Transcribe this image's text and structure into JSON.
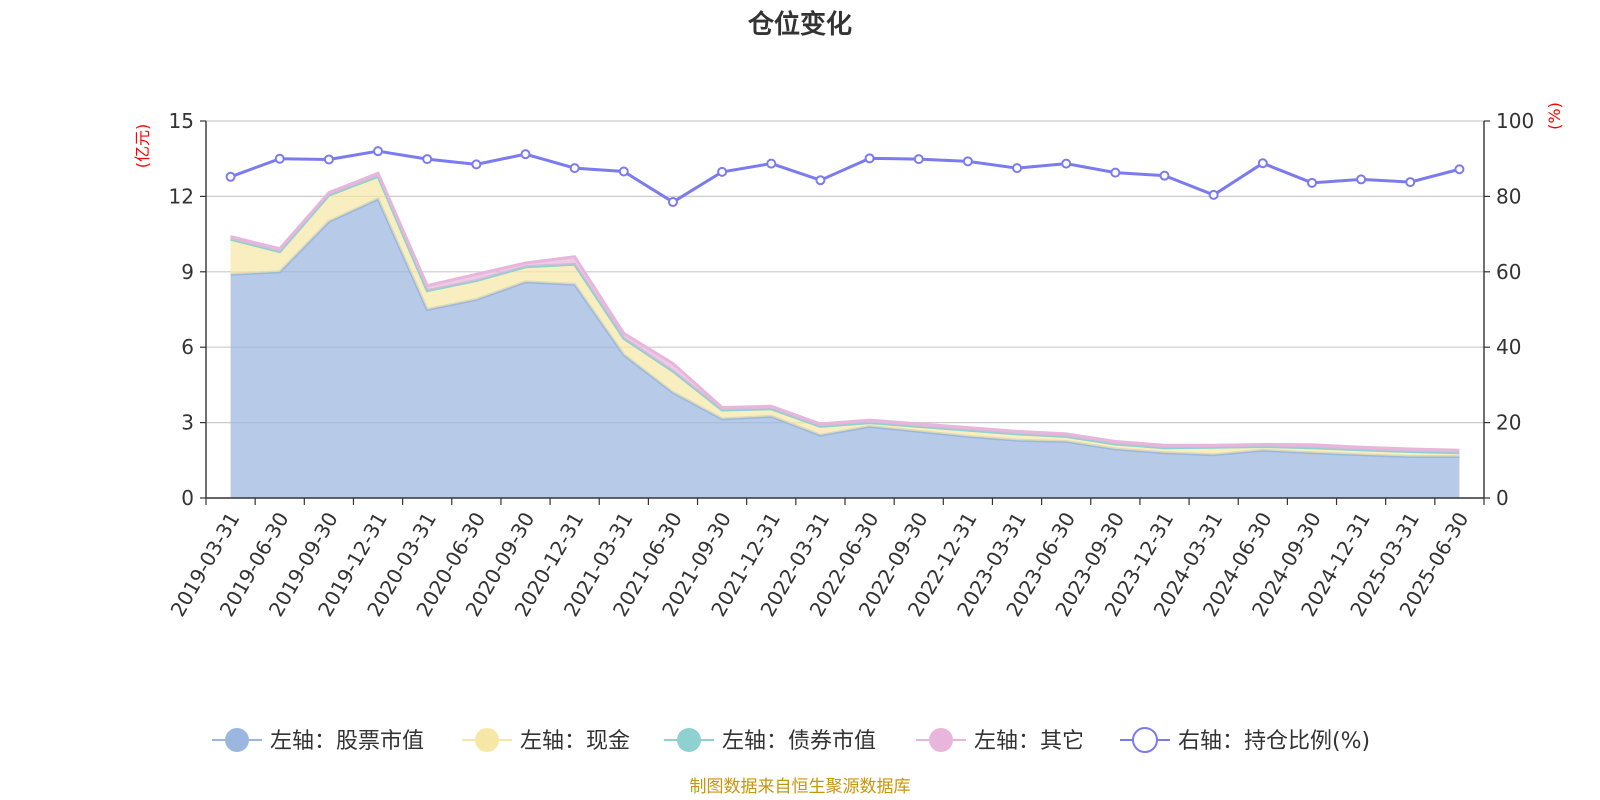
{
  "chart_data": {
    "type": "area",
    "title": "仓位变化",
    "left_axis_unit": "(亿元)",
    "right_axis_unit": "(%)",
    "categories": [
      "2019-03-31",
      "2019-06-30",
      "2019-09-30",
      "2019-12-31",
      "2020-03-31",
      "2020-06-30",
      "2020-09-30",
      "2020-12-31",
      "2021-03-31",
      "2021-06-30",
      "2021-09-30",
      "2021-12-31",
      "2022-03-31",
      "2022-06-30",
      "2022-09-30",
      "2022-12-31",
      "2023-03-31",
      "2023-06-30",
      "2023-09-30",
      "2023-12-31",
      "2024-03-31",
      "2024-06-30",
      "2024-09-30",
      "2024-12-31",
      "2025-03-31",
      "2025-06-30"
    ],
    "left_ylim": [
      0,
      15
    ],
    "left_ticks": [
      0,
      3,
      6,
      9,
      12,
      15
    ],
    "right_ylim": [
      0,
      100
    ],
    "right_ticks": [
      0,
      20,
      40,
      60,
      80,
      100
    ],
    "grid": true,
    "legend_position": "bottom",
    "series": [
      {
        "name": "左轴：股票市值",
        "axis": "left",
        "kind": "stacked-area",
        "color": "#9bb7e0",
        "values": [
          8.9,
          9.0,
          11.0,
          11.9,
          7.5,
          7.9,
          8.6,
          8.5,
          5.7,
          4.2,
          3.15,
          3.25,
          2.5,
          2.85,
          2.65,
          2.45,
          2.3,
          2.25,
          1.95,
          1.8,
          1.72,
          1.9,
          1.8,
          1.72,
          1.65,
          1.65
        ]
      },
      {
        "name": "左轴：现金",
        "axis": "left",
        "kind": "stacked-area",
        "color": "#f7e7a6",
        "values": [
          1.4,
          0.8,
          1.05,
          0.9,
          0.75,
          0.75,
          0.6,
          0.8,
          0.65,
          0.85,
          0.35,
          0.3,
          0.35,
          0.15,
          0.2,
          0.25,
          0.25,
          0.2,
          0.2,
          0.2,
          0.3,
          0.15,
          0.2,
          0.2,
          0.2,
          0.15
        ]
      },
      {
        "name": "左轴：债券市值",
        "axis": "left",
        "kind": "stacked-area",
        "color": "#8fd0d0",
        "values": [
          0,
          0,
          0,
          0,
          0,
          0,
          0,
          0,
          0,
          0,
          0,
          0,
          0,
          0,
          0,
          0,
          0,
          0,
          0,
          0,
          0,
          0,
          0,
          0,
          0,
          0
        ]
      },
      {
        "name": "左轴：其它",
        "axis": "left",
        "kind": "stacked-area",
        "color": "#e8b6dc",
        "values": [
          0.1,
          0.12,
          0.1,
          0.12,
          0.2,
          0.25,
          0.15,
          0.3,
          0.2,
          0.3,
          0.1,
          0.1,
          0.1,
          0.1,
          0.1,
          0.1,
          0.1,
          0.1,
          0.1,
          0.1,
          0.08,
          0.08,
          0.12,
          0.1,
          0.1,
          0.1
        ]
      },
      {
        "name": "右轴：持仓比例(%)",
        "axis": "right",
        "kind": "line",
        "color": "#7b7bef",
        "values": [
          85.2,
          90.0,
          89.8,
          92.0,
          89.9,
          88.5,
          91.2,
          87.5,
          86.6,
          78.5,
          86.5,
          88.7,
          84.3,
          90.1,
          89.9,
          89.3,
          87.5,
          88.7,
          86.3,
          85.5,
          80.4,
          88.8,
          83.6,
          84.5,
          83.8,
          87.2
        ]
      }
    ]
  },
  "footer": {
    "source": "制图数据来自恒生聚源数据库"
  }
}
